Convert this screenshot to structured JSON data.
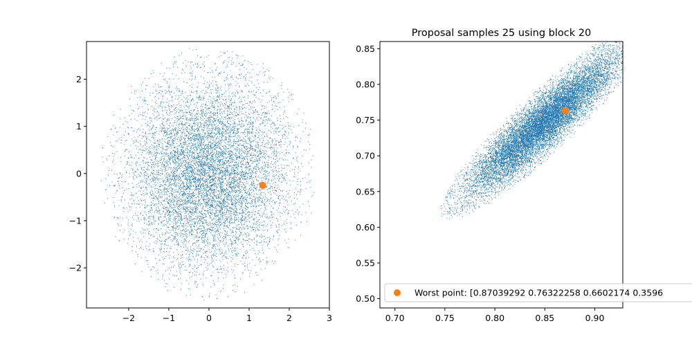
{
  "colors": {
    "scatter": "#1f77b4",
    "highlight": "#ff7f0e",
    "axes": "#000000",
    "legend_border": "#cccccc"
  },
  "chart_data": [
    {
      "type": "scatter",
      "title": "",
      "xlabel": "",
      "ylabel": "",
      "xlim": [
        -3.05,
        3.0
      ],
      "ylim": [
        -2.85,
        2.8
      ],
      "xticks": [
        -2,
        -1,
        0,
        1,
        2,
        3
      ],
      "xtick_labels": [
        "−2",
        "−1",
        "0",
        "1",
        "2",
        "3"
      ],
      "yticks": [
        -2,
        -1,
        0,
        1,
        2
      ],
      "ytick_labels": [
        "−2",
        "−1",
        "0",
        "1",
        "2"
      ],
      "grid": false,
      "series": [
        {
          "kind": "samples",
          "distribution": "gaussian",
          "mean": [
            0.0,
            0.0
          ],
          "std": [
            1.0,
            1.0
          ],
          "correlation": 0.0,
          "bound_radius": 2.7,
          "count": 9000
        },
        {
          "kind": "highlight",
          "points": [
            [
              1.34,
              -0.25
            ]
          ]
        }
      ]
    },
    {
      "type": "scatter",
      "title": "Proposal samples 25 using block 20",
      "xlabel": "",
      "ylabel": "",
      "xlim": [
        0.685,
        0.928
      ],
      "ylim": [
        0.487,
        0.86
      ],
      "xticks": [
        0.7,
        0.75,
        0.8,
        0.85,
        0.9
      ],
      "xtick_labels": [
        "0.70",
        "0.75",
        "0.80",
        "0.85",
        "0.90"
      ],
      "yticks": [
        0.5,
        0.55,
        0.6,
        0.65,
        0.7,
        0.75,
        0.8,
        0.85
      ],
      "ytick_labels": [
        "0.50",
        "0.55",
        "0.60",
        "0.65",
        "0.70",
        "0.75",
        "0.80",
        "0.85"
      ],
      "grid": false,
      "legend": {
        "placement": "lower-left",
        "entries": [
          "Worst point: [0.87039292 0.76322258 0.6602174  0.3596"
        ]
      },
      "series": [
        {
          "kind": "samples",
          "distribution": "correlated",
          "mean": [
            0.848,
            0.745
          ],
          "std": [
            0.038,
            0.05
          ],
          "correlation": 0.91,
          "bound_radius": 2.7,
          "count": 12000
        },
        {
          "kind": "highlight",
          "name": "Worst point: [0.87039292 0.76322258 0.6602174  0.3596",
          "points": [
            [
              0.8704,
              0.7632
            ]
          ]
        }
      ]
    }
  ]
}
